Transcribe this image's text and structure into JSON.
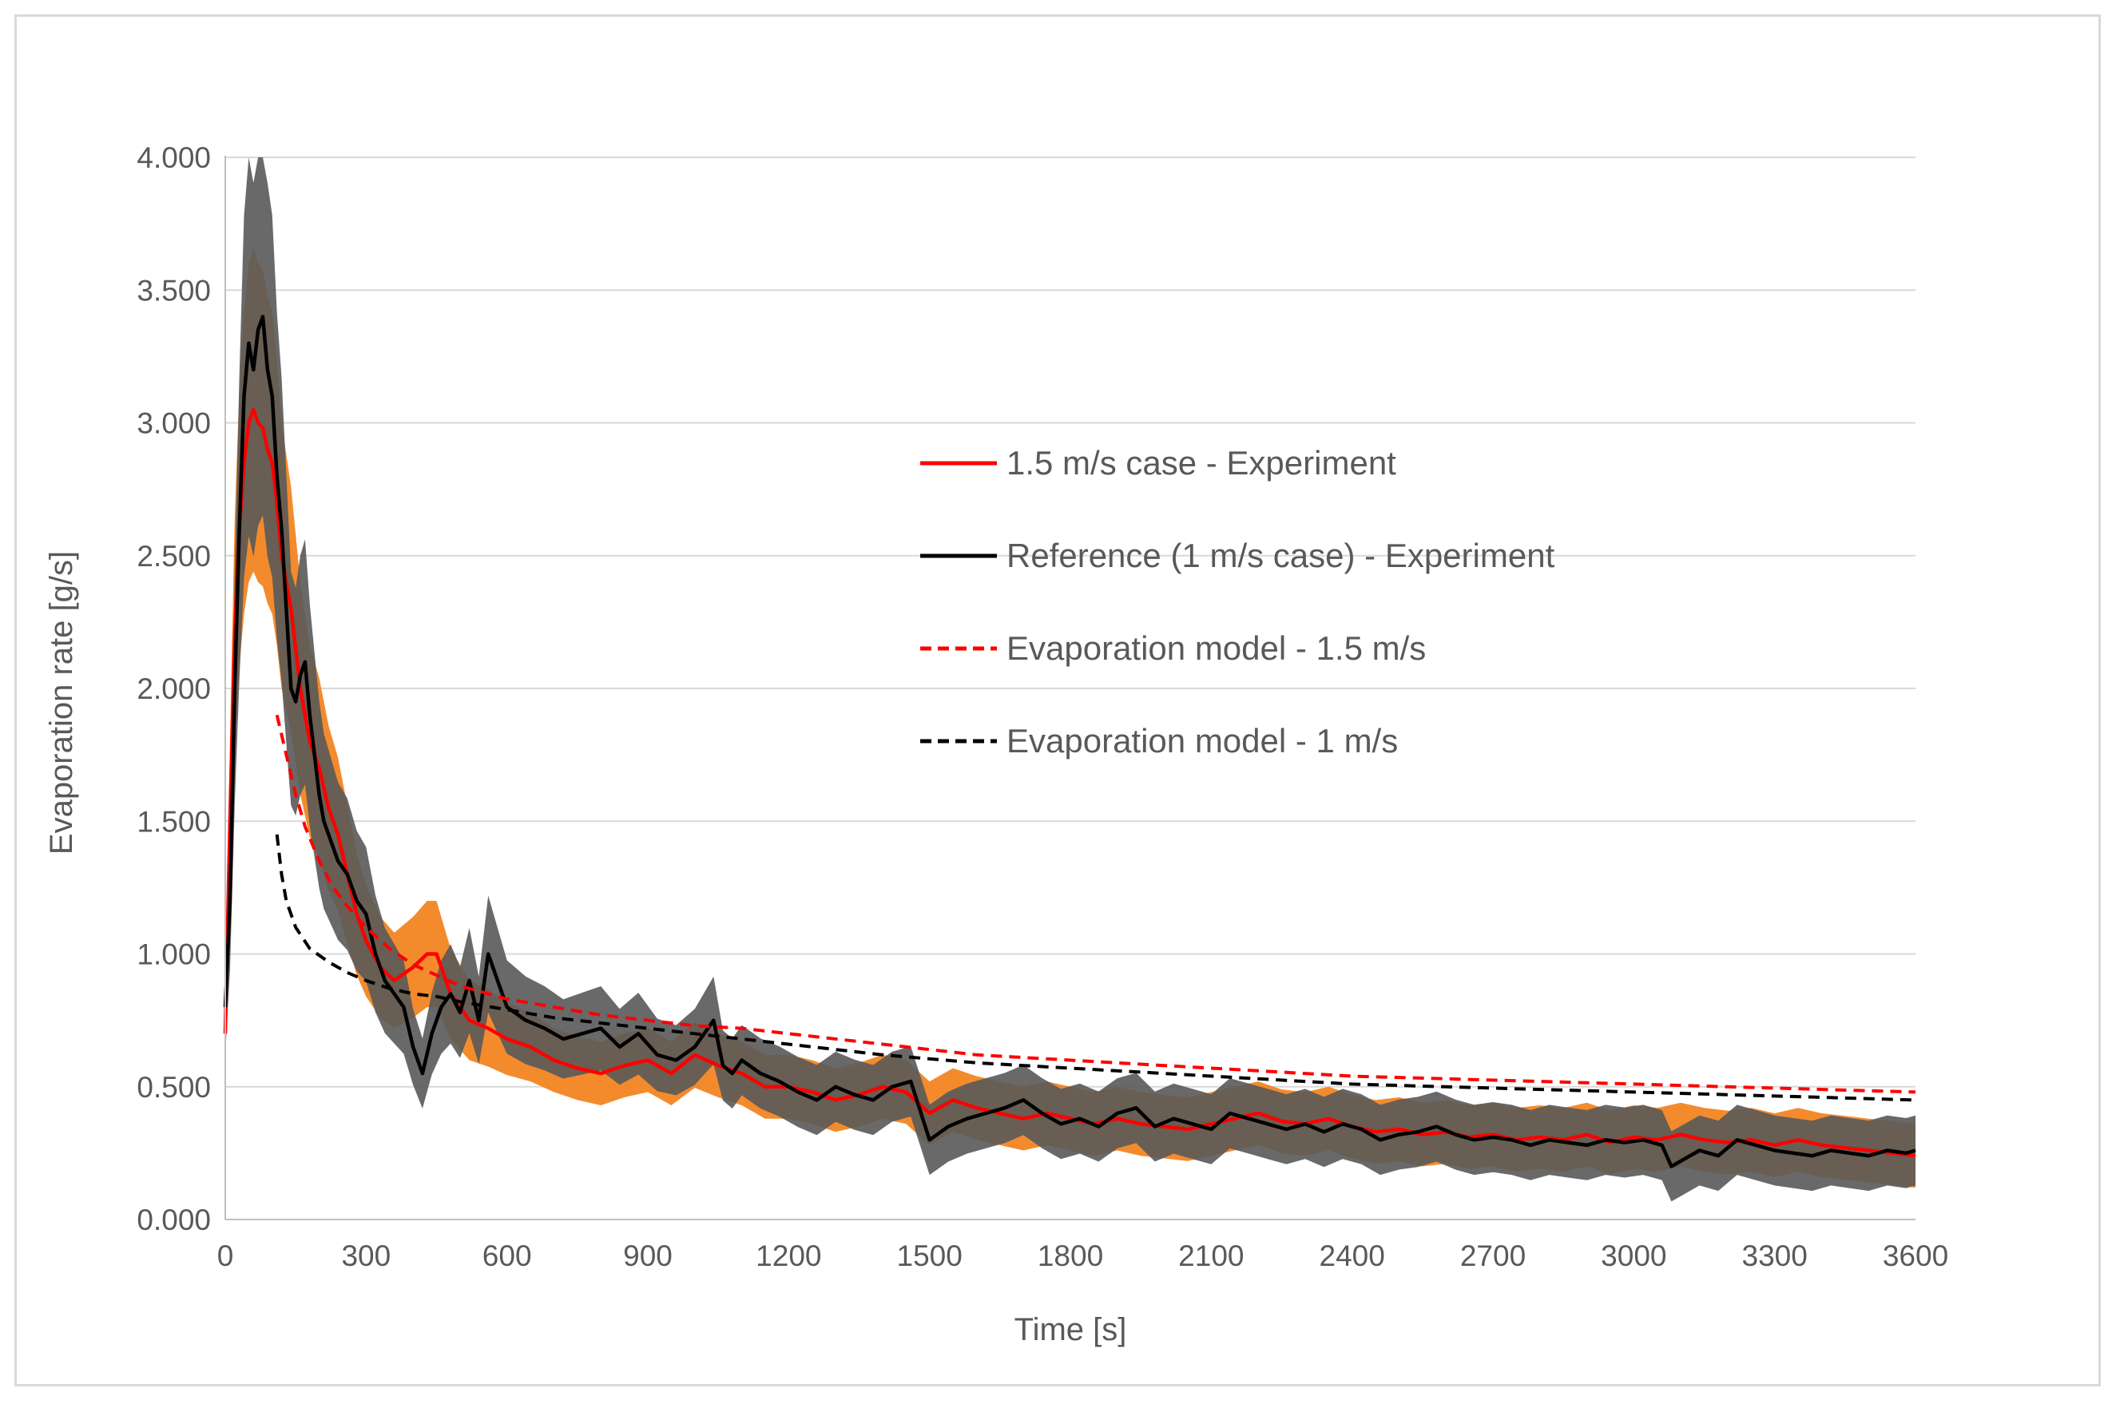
{
  "chart_data": {
    "type": "line",
    "title": "",
    "xlabel": "Time [s]",
    "ylabel": "Evaporation rate [g/s]",
    "xlim": [
      0,
      3600
    ],
    "ylim": [
      0,
      4
    ],
    "x_ticks": [
      "0",
      "300",
      "600",
      "900",
      "1200",
      "1500",
      "1800",
      "2100",
      "2400",
      "2700",
      "3000",
      "3300",
      "3600"
    ],
    "y_ticks": [
      "0.000",
      "0.500",
      "1.000",
      "1.500",
      "2.000",
      "2.500",
      "3.000",
      "3.500",
      "4.000"
    ],
    "grid": "horizontal",
    "legend_position": "center-right",
    "colors": {
      "exp_15": "#ff0000",
      "exp_15_error": "#f28522",
      "exp_ref": "#000000",
      "exp_ref_error": "#595959",
      "model_15": "#ff0000",
      "model_1": "#000000",
      "grid": "#d9d9d9",
      "axis": "#bfbfbf"
    },
    "series": [
      {
        "name": "1.5 m/s case - Experiment",
        "key": "exp_15",
        "style": "solid",
        "error_band": 0.2,
        "x": [
          0,
          10,
          20,
          30,
          40,
          50,
          60,
          70,
          80,
          90,
          100,
          110,
          120,
          140,
          160,
          180,
          200,
          220,
          240,
          260,
          280,
          300,
          330,
          360,
          400,
          430,
          450,
          480,
          520,
          560,
          600,
          650,
          700,
          750,
          800,
          850,
          900,
          950,
          1000,
          1050,
          1100,
          1150,
          1200,
          1250,
          1300,
          1350,
          1400,
          1450,
          1500,
          1550,
          1600,
          1650,
          1700,
          1750,
          1800,
          1850,
          1900,
          1950,
          2000,
          2050,
          2100,
          2150,
          2200,
          2250,
          2300,
          2350,
          2400,
          2450,
          2500,
          2550,
          2600,
          2650,
          2700,
          2750,
          2800,
          2850,
          2900,
          2950,
          3000,
          3050,
          3100,
          3150,
          3200,
          3250,
          3300,
          3350,
          3400,
          3450,
          3500,
          3550,
          3600
        ],
        "values": [
          0.7,
          1.5,
          2.2,
          2.6,
          2.85,
          3.0,
          3.05,
          3.0,
          2.98,
          2.9,
          2.85,
          2.7,
          2.5,
          2.3,
          2.0,
          1.8,
          1.7,
          1.55,
          1.45,
          1.3,
          1.15,
          1.05,
          0.95,
          0.9,
          0.95,
          1.0,
          1.0,
          0.85,
          0.75,
          0.72,
          0.68,
          0.65,
          0.6,
          0.57,
          0.55,
          0.58,
          0.6,
          0.55,
          0.62,
          0.58,
          0.55,
          0.5,
          0.5,
          0.48,
          0.45,
          0.47,
          0.5,
          0.48,
          0.4,
          0.45,
          0.42,
          0.4,
          0.38,
          0.4,
          0.38,
          0.36,
          0.38,
          0.36,
          0.35,
          0.34,
          0.36,
          0.38,
          0.4,
          0.37,
          0.36,
          0.38,
          0.35,
          0.33,
          0.34,
          0.32,
          0.33,
          0.31,
          0.32,
          0.3,
          0.31,
          0.3,
          0.32,
          0.29,
          0.31,
          0.3,
          0.32,
          0.3,
          0.29,
          0.3,
          0.28,
          0.3,
          0.28,
          0.27,
          0.26,
          0.25,
          0.24
        ]
      },
      {
        "name": "Reference (1 m/s case) - Experiment",
        "key": "exp_ref",
        "style": "solid",
        "error_band": 0.22,
        "x": [
          0,
          10,
          20,
          30,
          40,
          50,
          60,
          70,
          80,
          90,
          100,
          110,
          120,
          130,
          140,
          150,
          160,
          170,
          180,
          190,
          200,
          210,
          220,
          240,
          260,
          280,
          300,
          320,
          340,
          360,
          380,
          400,
          420,
          440,
          460,
          480,
          500,
          520,
          540,
          560,
          580,
          600,
          640,
          680,
          720,
          760,
          800,
          840,
          880,
          920,
          960,
          1000,
          1040,
          1060,
          1080,
          1100,
          1140,
          1180,
          1220,
          1260,
          1300,
          1340,
          1380,
          1420,
          1460,
          1500,
          1540,
          1580,
          1620,
          1660,
          1700,
          1740,
          1780,
          1820,
          1860,
          1900,
          1940,
          1980,
          2020,
          2060,
          2100,
          2140,
          2180,
          2220,
          2260,
          2300,
          2340,
          2380,
          2420,
          2460,
          2500,
          2540,
          2580,
          2620,
          2660,
          2700,
          2740,
          2780,
          2820,
          2860,
          2900,
          2940,
          2980,
          3020,
          3060,
          3080,
          3100,
          3140,
          3180,
          3220,
          3260,
          3300,
          3340,
          3380,
          3420,
          3460,
          3500,
          3540,
          3580,
          3600
        ],
        "values": [
          0.8,
          1.2,
          2.0,
          2.6,
          3.1,
          3.3,
          3.2,
          3.35,
          3.4,
          3.2,
          3.1,
          2.8,
          2.6,
          2.3,
          2.0,
          1.95,
          2.05,
          2.1,
          1.9,
          1.75,
          1.6,
          1.5,
          1.45,
          1.35,
          1.3,
          1.2,
          1.15,
          1.0,
          0.9,
          0.85,
          0.8,
          0.65,
          0.55,
          0.7,
          0.8,
          0.85,
          0.78,
          0.9,
          0.75,
          1.0,
          0.9,
          0.8,
          0.75,
          0.72,
          0.68,
          0.7,
          0.72,
          0.65,
          0.7,
          0.62,
          0.6,
          0.65,
          0.75,
          0.58,
          0.55,
          0.6,
          0.55,
          0.52,
          0.48,
          0.45,
          0.5,
          0.47,
          0.45,
          0.5,
          0.52,
          0.3,
          0.35,
          0.38,
          0.4,
          0.42,
          0.45,
          0.4,
          0.36,
          0.38,
          0.35,
          0.4,
          0.42,
          0.35,
          0.38,
          0.36,
          0.34,
          0.4,
          0.38,
          0.36,
          0.34,
          0.36,
          0.33,
          0.36,
          0.34,
          0.3,
          0.32,
          0.33,
          0.35,
          0.32,
          0.3,
          0.31,
          0.3,
          0.28,
          0.3,
          0.29,
          0.28,
          0.3,
          0.29,
          0.3,
          0.28,
          0.2,
          0.22,
          0.26,
          0.24,
          0.3,
          0.28,
          0.26,
          0.25,
          0.24,
          0.26,
          0.25,
          0.24,
          0.26,
          0.25,
          0.26
        ]
      },
      {
        "name": "Evaporation model - 1.5 m/s",
        "key": "model_15",
        "style": "dashed",
        "x": [
          110,
          130,
          150,
          170,
          200,
          230,
          260,
          300,
          350,
          400,
          450,
          500,
          600,
          700,
          800,
          900,
          1000,
          1100,
          1200,
          1400,
          1600,
          1800,
          2000,
          2200,
          2400,
          2600,
          2800,
          3000,
          3200,
          3400,
          3600
        ],
        "values": [
          1.9,
          1.75,
          1.6,
          1.48,
          1.35,
          1.25,
          1.18,
          1.1,
          1.02,
          0.96,
          0.92,
          0.88,
          0.83,
          0.8,
          0.77,
          0.75,
          0.73,
          0.72,
          0.7,
          0.66,
          0.62,
          0.6,
          0.58,
          0.56,
          0.54,
          0.53,
          0.52,
          0.51,
          0.5,
          0.49,
          0.48
        ]
      },
      {
        "name": "Evaporation model - 1 m/s",
        "key": "model_1",
        "style": "dashed",
        "x": [
          110,
          120,
          130,
          150,
          180,
          220,
          260,
          300,
          350,
          400,
          450,
          500,
          600,
          700,
          800,
          900,
          1000,
          1200,
          1400,
          1600,
          1800,
          2000,
          2200,
          2400,
          2600,
          2800,
          3000,
          3200,
          3400,
          3600
        ],
        "values": [
          1.45,
          1.3,
          1.2,
          1.1,
          1.02,
          0.97,
          0.93,
          0.9,
          0.87,
          0.85,
          0.84,
          0.82,
          0.79,
          0.76,
          0.74,
          0.72,
          0.7,
          0.66,
          0.62,
          0.59,
          0.57,
          0.55,
          0.53,
          0.51,
          0.5,
          0.49,
          0.48,
          0.47,
          0.46,
          0.45
        ]
      }
    ]
  }
}
